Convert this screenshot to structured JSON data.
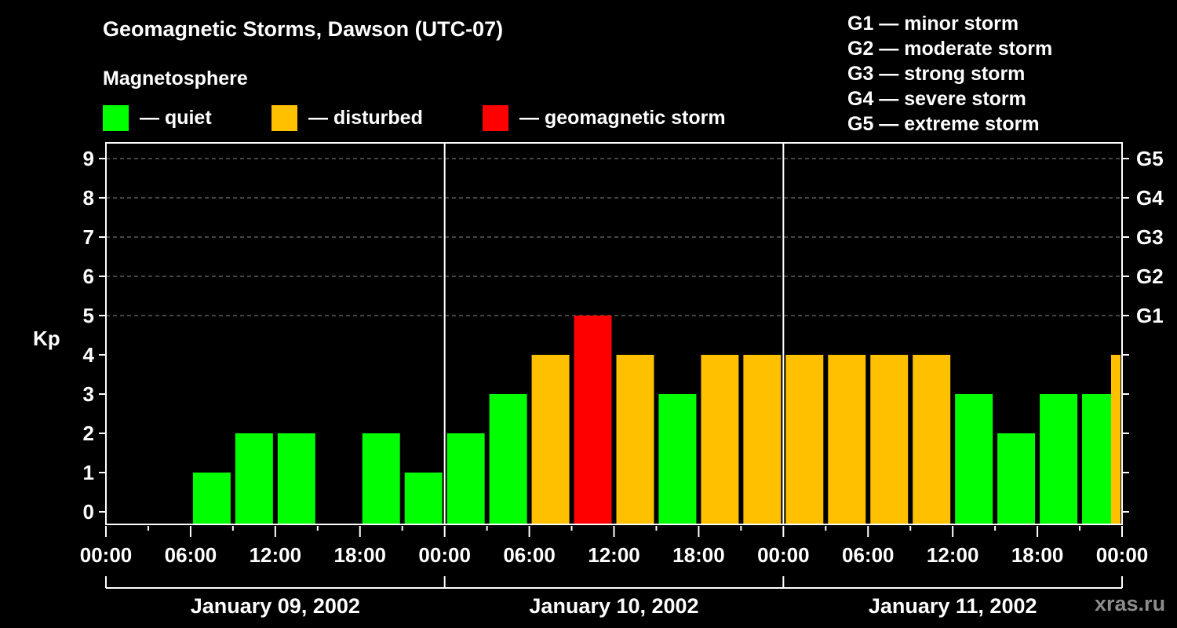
{
  "header": {
    "title": "Geomagnetic Storms, Dawson (UTC-07)",
    "subtitle": "Magnetosphere"
  },
  "legend": [
    {
      "label": "— quiet",
      "color": "#00ff00"
    },
    {
      "label": "— disturbed",
      "color": "#ffc000"
    },
    {
      "label": "— geomagnetic storm",
      "color": "#ff0000"
    }
  ],
  "g_scale": [
    "G1 — minor storm",
    "G2 — moderate storm",
    "G3 — strong storm",
    "G4 — severe storm",
    "G5 — extreme storm"
  ],
  "watermark": "xras.ru",
  "chart_data": {
    "type": "bar",
    "title": "Geomagnetic Storms, Dawson (UTC-07)",
    "xlabel": "",
    "ylabel": "Kp",
    "ylim": [
      0,
      9
    ],
    "yticks": [
      0,
      1,
      2,
      3,
      4,
      5,
      6,
      7,
      8,
      9
    ],
    "right_axis_labels": [
      {
        "kp": 5,
        "label": "G1"
      },
      {
        "kp": 6,
        "label": "G2"
      },
      {
        "kp": 7,
        "label": "G3"
      },
      {
        "kp": 8,
        "label": "G4"
      },
      {
        "kp": 9,
        "label": "G5"
      }
    ],
    "grid": "dashed horizontal lines at Kp 5-9",
    "xtick_labels": [
      "00:00",
      "06:00",
      "12:00",
      "18:00",
      "00:00",
      "06:00",
      "12:00",
      "18:00",
      "00:00",
      "06:00",
      "12:00",
      "18:00",
      "00:00"
    ],
    "date_labels": [
      "January 09, 2002",
      "January 10, 2002",
      "January 11, 2002"
    ],
    "interval_hours": 3,
    "categories": [
      "Jan 09 00:00",
      "Jan 09 03:00",
      "Jan 09 06:00",
      "Jan 09 09:00",
      "Jan 09 12:00",
      "Jan 09 15:00",
      "Jan 09 18:00",
      "Jan 09 21:00",
      "Jan 10 00:00",
      "Jan 10 03:00",
      "Jan 10 06:00",
      "Jan 10 09:00",
      "Jan 10 12:00",
      "Jan 10 15:00",
      "Jan 10 18:00",
      "Jan 10 21:00",
      "Jan 11 00:00",
      "Jan 11 03:00",
      "Jan 11 06:00",
      "Jan 11 09:00",
      "Jan 11 12:00",
      "Jan 11 15:00",
      "Jan 11 18:00",
      "Jan 11 21:00"
    ],
    "values": [
      0,
      0,
      1,
      2,
      2,
      0,
      2,
      1,
      2,
      3,
      4,
      5,
      4,
      3,
      4,
      4,
      4,
      4,
      4,
      4,
      3,
      2,
      3,
      3
    ],
    "trailing_partial_bar": {
      "value": 4,
      "status": "disturbed"
    },
    "status_colors": {
      "quiet": "#00ff00",
      "disturbed": "#ffc000",
      "storm": "#ff0000"
    },
    "thresholds": {
      "disturbed_min": 4,
      "storm_min": 5
    }
  }
}
